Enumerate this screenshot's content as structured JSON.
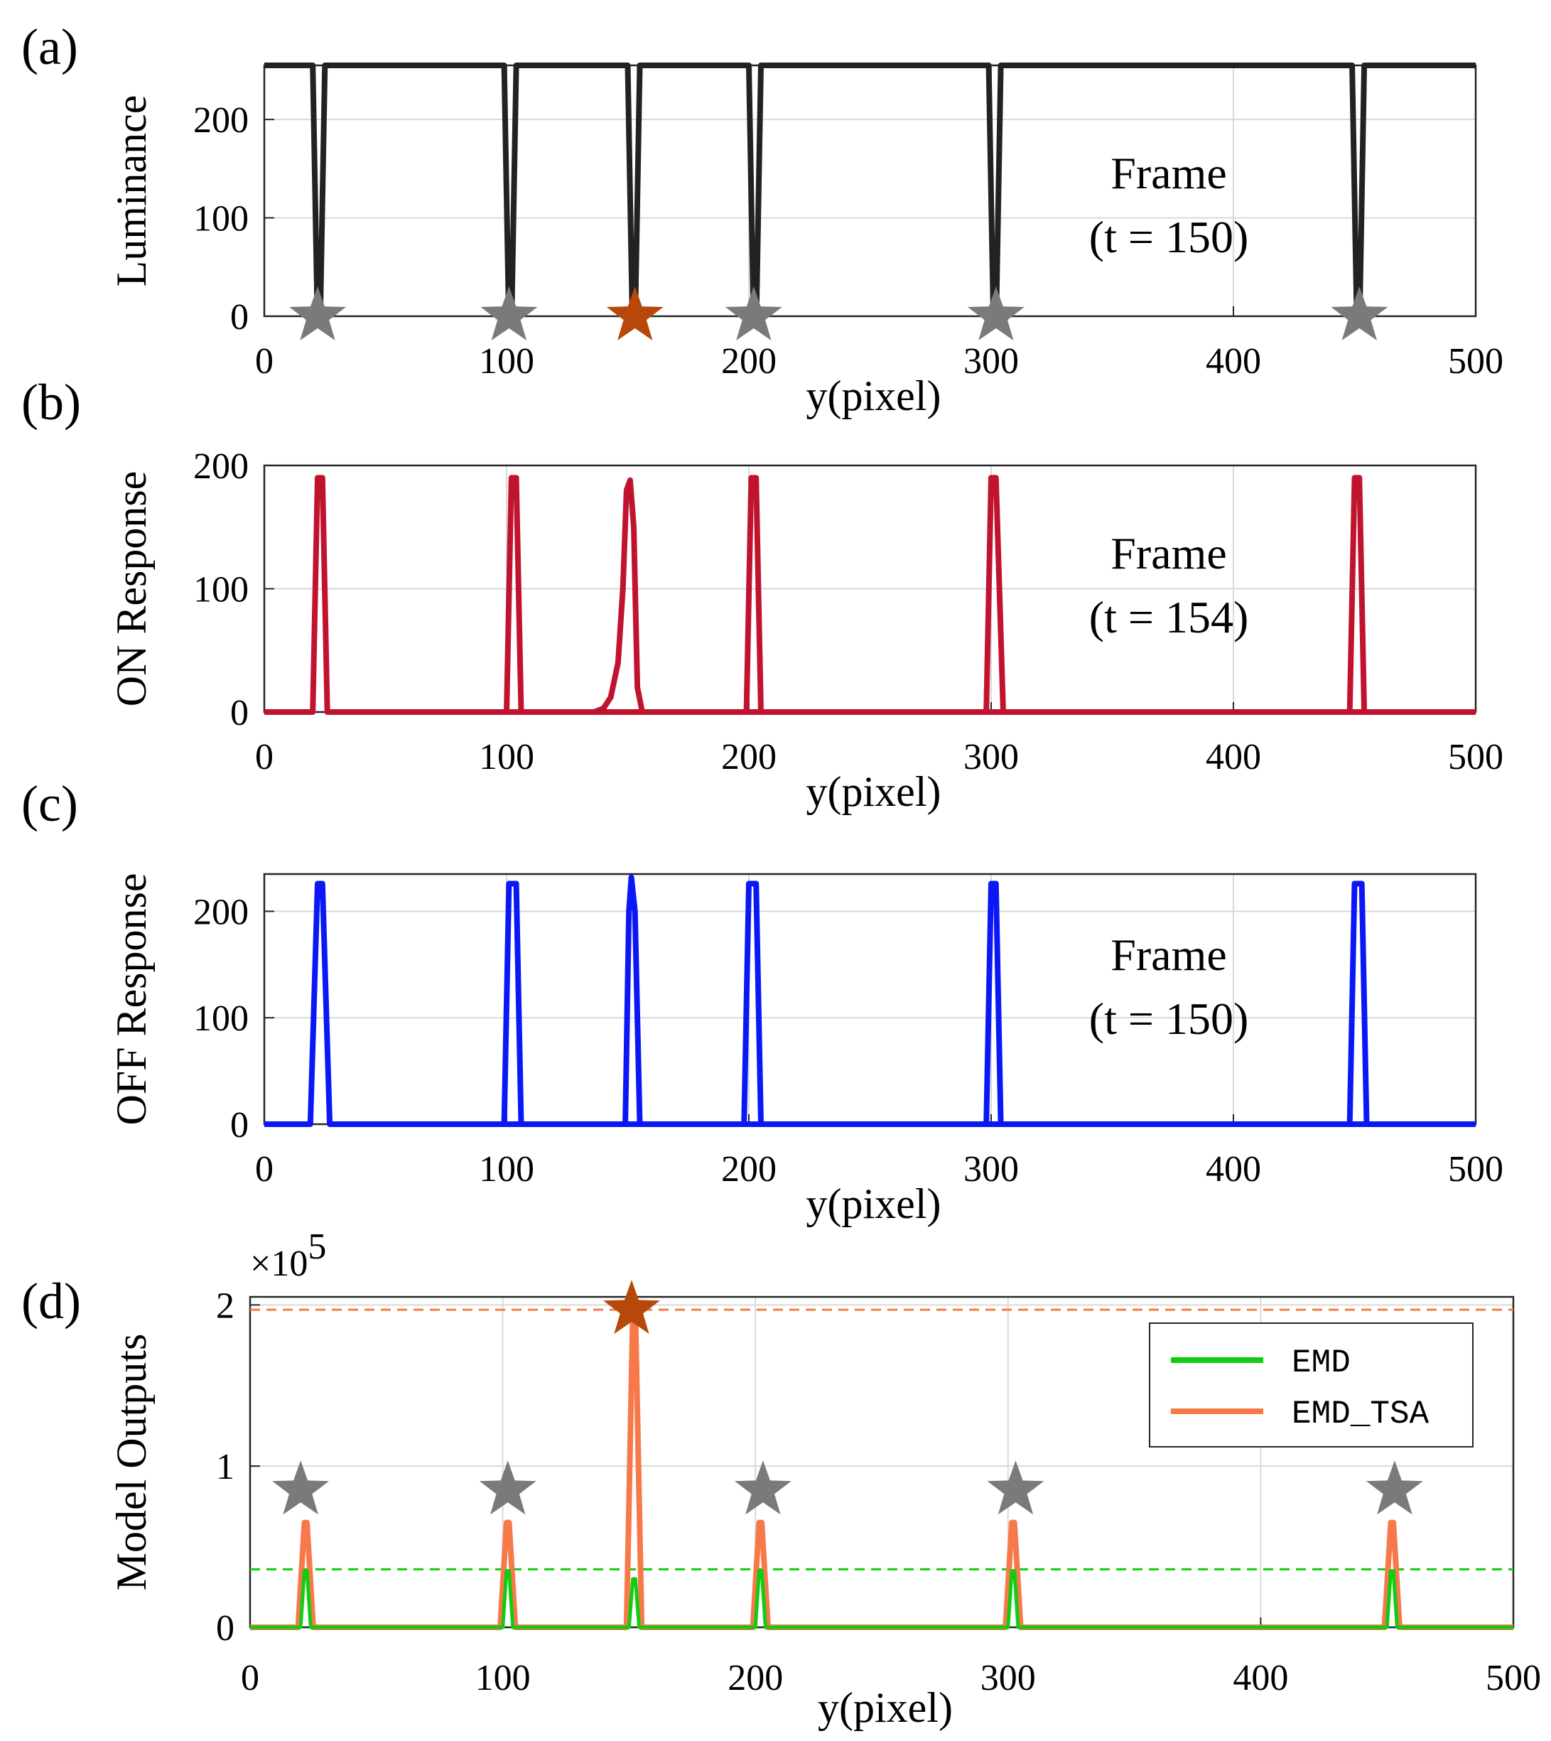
{
  "figure": {
    "panels": [
      "(a)",
      "(b)",
      "(c)",
      "(d)"
    ]
  },
  "colors": {
    "luminance": "#222222",
    "on": "#c0142e",
    "off": "#0b18f5",
    "emd": "#11cc11",
    "emd_tsa": "#f7794a",
    "star_gray": "#7a7a7a",
    "star_brown": "#b8480a",
    "grid": "#d9d9d9"
  },
  "chart_data": [
    {
      "type": "line",
      "panel_label": "(a)",
      "title": "",
      "xlabel": "y(pixel)",
      "ylabel": "Luminance",
      "xlim": [
        0,
        500
      ],
      "ylim": [
        0,
        255
      ],
      "xticks": [
        0,
        100,
        200,
        300,
        400,
        500
      ],
      "yticks": [
        0,
        100,
        200
      ],
      "annotation": [
        "Frame",
        "(t = 150)"
      ],
      "grid": true,
      "series": [
        {
          "name": "Luminance",
          "color_key": "luminance",
          "kind": "notches",
          "baseline": 255,
          "notch_value": 0,
          "notches": [
            [
              20,
              25
            ],
            [
              99,
              104
            ],
            [
              150,
              155
            ],
            [
              200,
              205
            ],
            [
              299,
              304
            ],
            [
              449,
              454
            ]
          ]
        }
      ],
      "markers": [
        {
          "x": 22,
          "y": 0,
          "color_key": "star_gray"
        },
        {
          "x": 101,
          "y": 0,
          "color_key": "star_gray"
        },
        {
          "x": 153,
          "y": 0,
          "color_key": "star_brown"
        },
        {
          "x": 202,
          "y": 0,
          "color_key": "star_gray"
        },
        {
          "x": 302,
          "y": 0,
          "color_key": "star_gray"
        },
        {
          "x": 452,
          "y": 0,
          "color_key": "star_gray"
        }
      ]
    },
    {
      "type": "line",
      "panel_label": "(b)",
      "title": "",
      "xlabel": "y(pixel)",
      "ylabel": "ON Response",
      "xlim": [
        0,
        500
      ],
      "ylim": [
        0,
        200
      ],
      "xticks": [
        0,
        100,
        200,
        300,
        400,
        500
      ],
      "yticks": [
        0,
        100,
        200
      ],
      "annotation": [
        "Frame",
        "(t = 154)"
      ],
      "grid": true,
      "series": [
        {
          "name": "ON Response",
          "color_key": "on",
          "kind": "polyline",
          "x": [
            0,
            17,
            20,
            22,
            24,
            26,
            29,
            500
          ],
          "y": [
            0,
            0,
            0,
            190,
            190,
            0,
            0,
            0
          ]
        },
        {
          "name": "ON Response",
          "color_key": "on",
          "kind": "polyline",
          "x": [
            97,
            100,
            102,
            104,
            106,
            109
          ],
          "y": [
            0,
            0,
            190,
            190,
            0,
            0
          ]
        },
        {
          "name": "ON Response",
          "color_key": "on",
          "kind": "polyline",
          "x": [
            136,
            140,
            143,
            146,
            148,
            149.5,
            151,
            152.5,
            154,
            156
          ],
          "y": [
            0,
            3,
            12,
            40,
            100,
            180,
            188,
            150,
            20,
            0
          ]
        },
        {
          "name": "ON Response",
          "color_key": "on",
          "kind": "polyline",
          "x": [
            197,
            199,
            201,
            203,
            205,
            208
          ],
          "y": [
            0,
            0,
            190,
            190,
            0,
            0
          ]
        },
        {
          "name": "ON Response",
          "color_key": "on",
          "kind": "polyline",
          "x": [
            297,
            298,
            300,
            302,
            305,
            307
          ],
          "y": [
            0,
            0,
            190,
            190,
            0,
            0
          ]
        },
        {
          "name": "ON Response",
          "color_key": "on",
          "kind": "polyline",
          "x": [
            447,
            448,
            450,
            452,
            454,
            457
          ],
          "y": [
            0,
            0,
            190,
            190,
            0,
            0
          ]
        }
      ]
    },
    {
      "type": "line",
      "panel_label": "(c)",
      "title": "",
      "xlabel": "y(pixel)",
      "ylabel": "OFF Response",
      "xlim": [
        0,
        500
      ],
      "ylim": [
        0,
        235
      ],
      "xticks": [
        0,
        100,
        200,
        300,
        400,
        500
      ],
      "yticks": [
        0,
        100,
        200
      ],
      "annotation": [
        "Frame",
        "(t = 150)"
      ],
      "grid": true,
      "series": [
        {
          "name": "OFF Response",
          "color_key": "off",
          "kind": "polyline",
          "x": [
            0,
            17,
            19,
            22,
            24,
            27,
            29,
            500
          ],
          "y": [
            0,
            0,
            0,
            226,
            226,
            0,
            0,
            0
          ]
        },
        {
          "name": "OFF Response",
          "color_key": "off",
          "kind": "polyline",
          "x": [
            97,
            99,
            101,
            104,
            106,
            109
          ],
          "y": [
            0,
            0,
            226,
            226,
            0,
            0
          ]
        },
        {
          "name": "OFF Response",
          "color_key": "off",
          "kind": "polyline",
          "x": [
            147,
            149,
            150.5,
            151.5,
            153,
            155,
            157
          ],
          "y": [
            0,
            0,
            200,
            232,
            200,
            0,
            0
          ]
        },
        {
          "name": "OFF Response",
          "color_key": "off",
          "kind": "polyline",
          "x": [
            197,
            198,
            200,
            203,
            205,
            208
          ],
          "y": [
            0,
            0,
            226,
            226,
            0,
            0
          ]
        },
        {
          "name": "OFF Response",
          "color_key": "off",
          "kind": "polyline",
          "x": [
            297,
            298,
            300,
            302,
            304,
            307
          ],
          "y": [
            0,
            0,
            226,
            226,
            0,
            0
          ]
        },
        {
          "name": "OFF Response",
          "color_key": "off",
          "kind": "polyline",
          "x": [
            447,
            448,
            450,
            453,
            455,
            458
          ],
          "y": [
            0,
            0,
            226,
            226,
            0,
            0
          ]
        }
      ]
    },
    {
      "type": "line",
      "panel_label": "(d)",
      "title": "",
      "xlabel": "y(pixel)",
      "ylabel": "Model Outputs",
      "xlim": [
        0,
        500
      ],
      "ylim": [
        0,
        2.05
      ],
      "xticks": [
        0,
        100,
        200,
        300,
        400,
        500
      ],
      "yticks": [
        0,
        1,
        2
      ],
      "y_multiplier": {
        "base": "×10",
        "exponent": "5"
      },
      "grid": true,
      "legend": {
        "position": "top-right",
        "entries": [
          "EMD",
          "EMD_TSA"
        ]
      },
      "hlines": [
        {
          "y": 1.97,
          "color_key": "emd_tsa",
          "style": "dashed"
        },
        {
          "y": 0.36,
          "color_key": "emd",
          "style": "dashed"
        }
      ],
      "series": [
        {
          "name": "EMD",
          "color_key": "emd",
          "kind": "peaks",
          "baseline": 0,
          "peaks": [
            {
              "x": 22,
              "y": 0.35,
              "w": 2
            },
            {
              "x": 102,
              "y": 0.35,
              "w": 2
            },
            {
              "x": 152,
              "y": 0.3,
              "w": 2
            },
            {
              "x": 202,
              "y": 0.35,
              "w": 2
            },
            {
              "x": 302,
              "y": 0.35,
              "w": 2
            },
            {
              "x": 452,
              "y": 0.35,
              "w": 2
            }
          ]
        },
        {
          "name": "EMD_TSA",
          "color_key": "emd_tsa",
          "kind": "peaks",
          "baseline": 0,
          "peaks": [
            {
              "x": 22,
              "y": 0.65,
              "w": 3
            },
            {
              "x": 102,
              "y": 0.65,
              "w": 3
            },
            {
              "x": 152,
              "y": 1.96,
              "w": 3
            },
            {
              "x": 202,
              "y": 0.65,
              "w": 3
            },
            {
              "x": 302,
              "y": 0.65,
              "w": 3
            },
            {
              "x": 452,
              "y": 0.65,
              "w": 3
            }
          ]
        }
      ],
      "markers": [
        {
          "x": 20,
          "y": 0.85,
          "color_key": "star_gray"
        },
        {
          "x": 102,
          "y": 0.85,
          "color_key": "star_gray"
        },
        {
          "x": 151,
          "y": 1.97,
          "color_key": "star_brown"
        },
        {
          "x": 203,
          "y": 0.85,
          "color_key": "star_gray"
        },
        {
          "x": 303,
          "y": 0.85,
          "color_key": "star_gray"
        },
        {
          "x": 453,
          "y": 0.85,
          "color_key": "star_gray"
        }
      ]
    }
  ]
}
